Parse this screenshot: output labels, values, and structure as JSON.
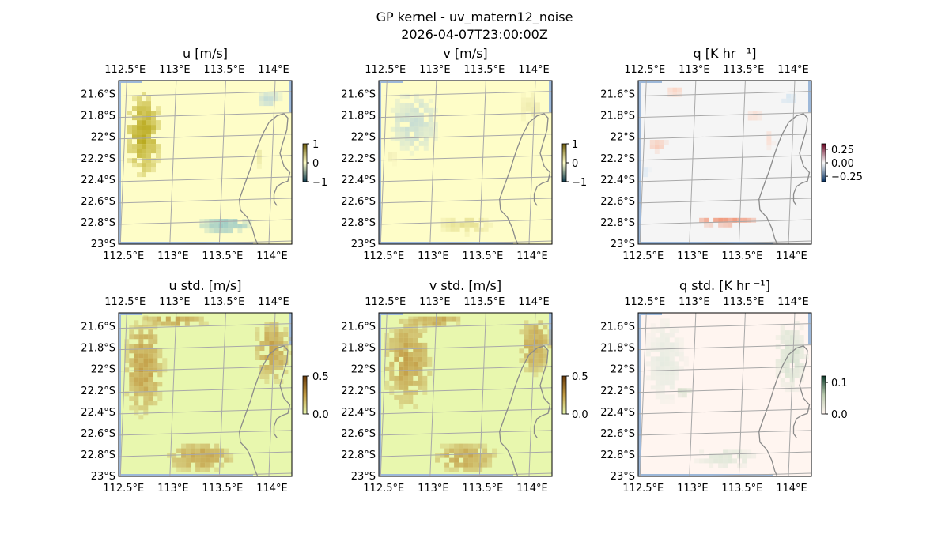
{
  "figure": {
    "title_line1": "GP kernel - uv_matern12_noise",
    "title_line2": "2026-04-07T23:00:00Z"
  },
  "chart_data": [
    {
      "type": "heatmap",
      "panel": "u",
      "title": "u [m/s]",
      "x_tick_labels": [
        "112.5°E",
        "113°E",
        "113.5°E",
        "114°E"
      ],
      "x_ticks": [
        112.5,
        113.0,
        113.5,
        114.0
      ],
      "y_tick_labels": [
        "21.6°S",
        "21.8°S",
        "22°S",
        "22.2°S",
        "22.4°S",
        "22.6°S",
        "22.8°S",
        "23°S"
      ],
      "y_ticks": [
        -21.6,
        -21.8,
        -22.0,
        -22.2,
        -22.4,
        -22.6,
        -22.8,
        -23.0
      ],
      "xlim": [
        112.45,
        114.2
      ],
      "ylim": [
        -23.0,
        -21.47
      ],
      "colorbar": {
        "ticks": [
          "1",
          "0",
          "−1"
        ],
        "range": [
          -1,
          1
        ]
      },
      "background_color": "#fefdc8",
      "anomalies": [
        {
          "lon": 112.68,
          "lat": -21.95,
          "rlon": 0.19,
          "rlat": 0.42,
          "value": 0.8,
          "color": "#b8a81c"
        },
        {
          "lon": 113.5,
          "lat": -22.8,
          "rlon": 0.28,
          "rlat": 0.08,
          "value": -0.35,
          "color": "#8fc3c5"
        },
        {
          "lon": 113.95,
          "lat": -21.62,
          "rlon": 0.13,
          "rlat": 0.09,
          "value": -0.15,
          "color": "#c2dbd6"
        },
        {
          "lon": 113.85,
          "lat": -22.15,
          "rlon": 0.05,
          "rlat": 0.12,
          "value": 0.25,
          "color": "#ece9a8"
        }
      ]
    },
    {
      "type": "heatmap",
      "panel": "v",
      "title": "v [m/s]",
      "x_tick_labels": [
        "112.5°E",
        "113°E",
        "113.5°E",
        "114°E"
      ],
      "x_ticks": [
        112.5,
        113.0,
        113.5,
        114.0
      ],
      "y_tick_labels": [
        "21.6°S",
        "21.8°S",
        "22°S",
        "22.2°S",
        "22.4°S",
        "22.6°S",
        "22.8°S",
        "23°S"
      ],
      "y_ticks": [
        -21.6,
        -21.8,
        -22.0,
        -22.2,
        -22.4,
        -22.6,
        -22.8,
        -23.0
      ],
      "xlim": [
        112.45,
        114.2
      ],
      "ylim": [
        -23.0,
        -21.47
      ],
      "colorbar": {
        "ticks": [
          "1",
          "0",
          "−1"
        ],
        "range": [
          -1,
          1
        ]
      },
      "background_color": "#fefdc8",
      "anomalies": [
        {
          "lon": 112.78,
          "lat": -21.85,
          "rlon": 0.26,
          "rlat": 0.3,
          "value": -0.25,
          "color": "#c7ddd3"
        },
        {
          "lon": 113.3,
          "lat": -22.8,
          "rlon": 0.27,
          "rlat": 0.09,
          "value": 0.35,
          "color": "#e4de8e"
        },
        {
          "lon": 113.96,
          "lat": -21.7,
          "rlon": 0.12,
          "rlat": 0.16,
          "value": 0.2,
          "color": "#eeeaae"
        },
        {
          "lon": 112.55,
          "lat": -22.15,
          "rlon": 0.06,
          "rlat": 0.1,
          "value": 0.15,
          "color": "#f2efb8"
        }
      ]
    },
    {
      "type": "heatmap",
      "panel": "q",
      "title": "q [K hr ⁻¹]",
      "x_tick_labels": [
        "112.5°E",
        "113°E",
        "113.5°E",
        "114°E"
      ],
      "x_ticks": [
        112.5,
        113.0,
        113.5,
        114.0
      ],
      "y_tick_labels": [
        "21.6°S",
        "21.8°S",
        "22°S",
        "22.2°S",
        "22.4°S",
        "22.6°S",
        "22.8°S",
        "23°S"
      ],
      "y_ticks": [
        -21.6,
        -21.8,
        -22.0,
        -22.2,
        -22.4,
        -22.6,
        -22.8,
        -23.0
      ],
      "xlim": [
        112.45,
        114.2
      ],
      "ylim": [
        -23.0,
        -21.47
      ],
      "colorbar": {
        "ticks": [
          "0.25",
          "0.00",
          "−0.25"
        ],
        "range": [
          -0.35,
          0.35
        ]
      },
      "background_color": "#f5f5f5",
      "anomalies": [
        {
          "lon": 113.3,
          "lat": -22.76,
          "rlon": 0.33,
          "rlat": 0.05,
          "value": 0.25,
          "color": "#f08e6e"
        },
        {
          "lon": 112.8,
          "lat": -21.55,
          "rlon": 0.1,
          "rlat": 0.06,
          "value": 0.08,
          "color": "#fad4c4"
        },
        {
          "lon": 112.62,
          "lat": -22.05,
          "rlon": 0.1,
          "rlat": 0.07,
          "value": 0.1,
          "color": "#f8c8b4"
        },
        {
          "lon": 113.6,
          "lat": -21.78,
          "rlon": 0.09,
          "rlat": 0.07,
          "value": 0.06,
          "color": "#f9dcd0"
        },
        {
          "lon": 113.95,
          "lat": -21.62,
          "rlon": 0.1,
          "rlat": 0.07,
          "value": -0.06,
          "color": "#d8e6f0"
        },
        {
          "lon": 112.5,
          "lat": -22.3,
          "rlon": 0.05,
          "rlat": 0.06,
          "value": -0.05,
          "color": "#dfeaf3"
        },
        {
          "lon": 113.75,
          "lat": -22.0,
          "rlon": 0.05,
          "rlat": 0.1,
          "value": 0.05,
          "color": "#fadfd4"
        }
      ]
    },
    {
      "type": "heatmap",
      "panel": "u_std",
      "title": "u std. [m/s]",
      "x_tick_labels": [
        "112.5°E",
        "113°E",
        "113.5°E",
        "114°E"
      ],
      "x_ticks": [
        112.5,
        113.0,
        113.5,
        114.0
      ],
      "y_tick_labels": [
        "21.6°S",
        "21.8°S",
        "22°S",
        "22.2°S",
        "22.4°S",
        "22.6°S",
        "22.8°S",
        "23°S"
      ],
      "y_ticks": [
        -21.6,
        -21.8,
        -22.0,
        -22.2,
        -22.4,
        -22.6,
        -22.8,
        -23.0
      ],
      "xlim": [
        112.45,
        114.2
      ],
      "ylim": [
        -23.0,
        -21.47
      ],
      "colorbar": {
        "ticks": [
          "0.5",
          "0.0"
        ],
        "range": [
          0,
          0.5
        ]
      },
      "background_color": "#e8f7ae",
      "anomalies": [
        {
          "lon": 112.68,
          "lat": -21.95,
          "rlon": 0.22,
          "rlat": 0.5,
          "value": 0.5,
          "color": "#c29c45"
        },
        {
          "lon": 113.25,
          "lat": -22.8,
          "rlon": 0.36,
          "rlat": 0.15,
          "value": 0.5,
          "color": "#c29c45"
        },
        {
          "lon": 113.98,
          "lat": -21.8,
          "rlon": 0.2,
          "rlat": 0.33,
          "value": 0.5,
          "color": "#c29c45"
        },
        {
          "lon": 113.0,
          "lat": -21.52,
          "rlon": 0.36,
          "rlat": 0.06,
          "value": 0.5,
          "color": "#c29c45"
        }
      ]
    },
    {
      "type": "heatmap",
      "panel": "v_std",
      "title": "v std. [m/s]",
      "x_tick_labels": [
        "112.5°E",
        "113°E",
        "113.5°E",
        "114°E"
      ],
      "x_ticks": [
        112.5,
        113.0,
        113.5,
        114.0
      ],
      "y_tick_labels": [
        "21.6°S",
        "21.8°S",
        "22°S",
        "22.2°S",
        "22.4°S",
        "22.6°S",
        "22.8°S",
        "23°S"
      ],
      "y_ticks": [
        -21.6,
        -21.8,
        -22.0,
        -22.2,
        -22.4,
        -22.6,
        -22.8,
        -23.0
      ],
      "xlim": [
        112.45,
        114.2
      ],
      "ylim": [
        -23.0,
        -21.47
      ],
      "colorbar": {
        "ticks": [
          "0.5",
          "0.0"
        ],
        "range": [
          0,
          0.5
        ]
      },
      "background_color": "#e8f7ae",
      "anomalies": [
        {
          "lon": 112.72,
          "lat": -21.9,
          "rlon": 0.26,
          "rlat": 0.46,
          "value": 0.5,
          "color": "#c29c45"
        },
        {
          "lon": 113.3,
          "lat": -22.8,
          "rlon": 0.33,
          "rlat": 0.15,
          "value": 0.5,
          "color": "#c29c45"
        },
        {
          "lon": 114.0,
          "lat": -21.75,
          "rlon": 0.18,
          "rlat": 0.3,
          "value": 0.5,
          "color": "#c29c45"
        },
        {
          "lon": 113.0,
          "lat": -21.52,
          "rlon": 0.3,
          "rlat": 0.06,
          "value": 0.5,
          "color": "#c29c45"
        }
      ]
    },
    {
      "type": "heatmap",
      "panel": "q_std",
      "title": "q std. [K hr ⁻¹]",
      "x_tick_labels": [
        "112.5°E",
        "113°E",
        "113.5°E",
        "114°E"
      ],
      "x_ticks": [
        112.5,
        113.0,
        113.5,
        114.0
      ],
      "y_tick_labels": [
        "21.6°S",
        "21.8°S",
        "22°S",
        "22.2°S",
        "22.4°S",
        "22.6°S",
        "22.8°S",
        "23°S"
      ],
      "y_ticks": [
        -21.6,
        -21.8,
        -22.0,
        -22.2,
        -22.4,
        -22.6,
        -22.8,
        -23.0
      ],
      "xlim": [
        112.45,
        114.2
      ],
      "ylim": [
        -23.0,
        -21.47
      ],
      "colorbar": {
        "ticks": [
          "0.1",
          "0.0"
        ],
        "range": [
          0,
          0.12
        ]
      },
      "background_color": "#fff5f0",
      "anomalies": [
        {
          "lon": 112.7,
          "lat": -21.9,
          "rlon": 0.22,
          "rlat": 0.42,
          "value": 0.03,
          "color": "#e6ebe0"
        },
        {
          "lon": 113.3,
          "lat": -22.8,
          "rlon": 0.33,
          "rlat": 0.1,
          "value": 0.04,
          "color": "#dde6d6"
        },
        {
          "lon": 113.97,
          "lat": -21.85,
          "rlon": 0.18,
          "rlat": 0.35,
          "value": 0.05,
          "color": "#d6e2cf"
        },
        {
          "lon": 112.88,
          "lat": -22.18,
          "rlon": 0.08,
          "rlat": 0.05,
          "value": 0.06,
          "color": "#ccd9c4"
        }
      ]
    }
  ]
}
